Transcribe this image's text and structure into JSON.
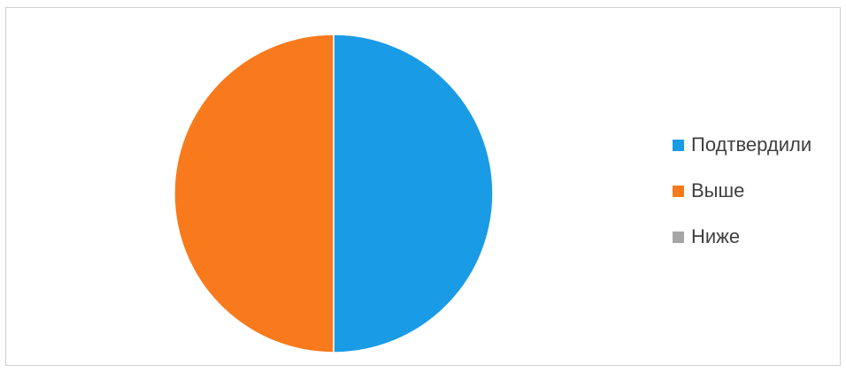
{
  "chart_data": {
    "type": "pie",
    "title": "",
    "legend_position": "right",
    "series": [
      {
        "name": "Подтвердили",
        "value": 50,
        "color": "#1a9be6"
      },
      {
        "name": "Выше",
        "value": 50,
        "color": "#f97a1c"
      },
      {
        "name": "Ниже",
        "value": 0,
        "color": "#a6a6a6"
      }
    ]
  }
}
